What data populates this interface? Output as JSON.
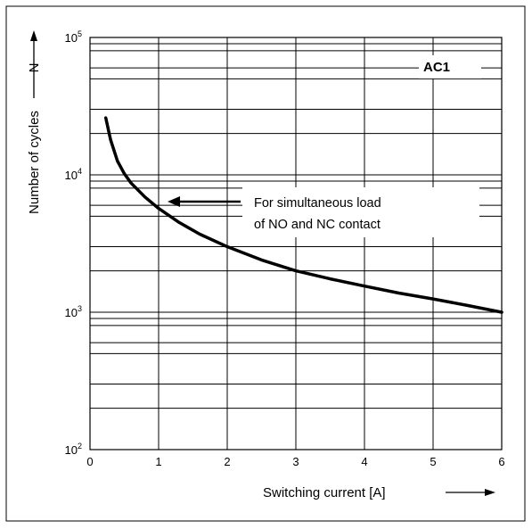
{
  "chart_data": {
    "type": "line",
    "title": "",
    "xlabel": "Switching current [A]",
    "ylabel": "Number of cycles",
    "ysymbol": "N",
    "xlim": [
      0,
      6
    ],
    "ylim": [
      100,
      100000
    ],
    "yscale": "log",
    "x_ticks": [
      "0",
      "1",
      "2",
      "3",
      "4",
      "5",
      "6"
    ],
    "y_ticks": [
      {
        "base": "10",
        "exp": "2"
      },
      {
        "base": "10",
        "exp": "3"
      },
      {
        "base": "10",
        "exp": "4"
      },
      {
        "base": "10",
        "exp": "5"
      }
    ],
    "grid": true,
    "series": [
      {
        "name": "",
        "x": [
          0.23,
          0.3,
          0.4,
          0.5,
          0.6,
          0.8,
          1.0,
          1.3,
          1.6,
          2.0,
          2.5,
          3.0,
          3.5,
          4.0,
          4.5,
          5.0,
          5.5,
          6.0
        ],
        "y": [
          26000,
          18000,
          12600,
          10200,
          8700,
          6900,
          5700,
          4500,
          3700,
          3000,
          2400,
          2000,
          1750,
          1550,
          1380,
          1250,
          1120,
          1000
        ]
      }
    ],
    "annotations": {
      "curve_label": "AC1",
      "note_line1": "For simultaneous load",
      "note_line2": "of NO and NC contact"
    }
  }
}
